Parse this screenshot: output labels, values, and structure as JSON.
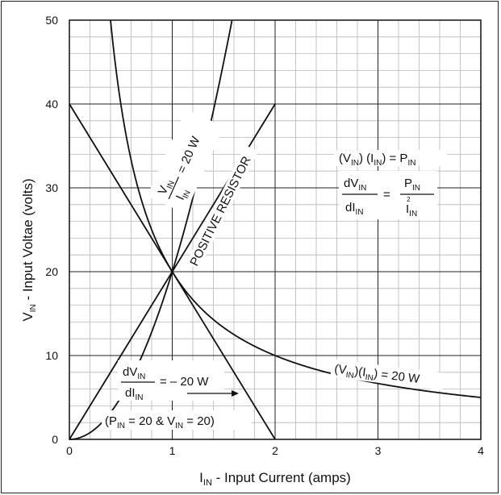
{
  "chart_data": {
    "type": "line",
    "xlabel": {
      "main": "I",
      "sub": "IN",
      "rest": " - Input Current (amps)"
    },
    "ylabel": {
      "main": "V",
      "sub": "IN",
      "rest": " - Input Voltae (volts)"
    },
    "xlim": [
      0,
      4
    ],
    "ylim": [
      0,
      50
    ],
    "x_ticks": [
      "0",
      "1",
      "2",
      "3",
      "4"
    ],
    "y_ticks": [
      "0",
      "10",
      "20",
      "30",
      "40",
      "50"
    ],
    "grid": {
      "major": true,
      "minor": true,
      "minor_x_step": 0.2,
      "minor_y_step": 2
    },
    "series": [
      {
        "kind": "hyperbola",
        "power": 20,
        "x_start": 0.4,
        "x_end": 4.0
      },
      {
        "kind": "parabola",
        "equation": "V = 20 * I^2",
        "x_start": 0.0,
        "x_end": 1.58
      },
      {
        "kind": "line",
        "x": [
          0,
          2
        ],
        "y": [
          0,
          40
        ]
      },
      {
        "kind": "line",
        "x": [
          0,
          2
        ],
        "y": [
          40,
          0
        ]
      }
    ],
    "annotations": {
      "parabola_label": {
        "num_main": "V",
        "num_sub": "IN",
        "den_main": "I",
        "den_sub": "IN",
        "rhs": "=   20 W"
      },
      "positive_resistor": "POSITIVE RESISTOR",
      "power_eq": {
        "a": "(V",
        "a_sub": "IN",
        "b": ") (I",
        "b_sub": "IN",
        "c": ") = P",
        "c_sub": "IN"
      },
      "deriv_eq": {
        "dV": "dV",
        "dV_sub": "IN",
        "dI": "dI",
        "dI_sub": "IN",
        "eq": "=",
        "P": "P",
        "P_sub": "IN",
        "I": "I",
        "I_sub": "IN",
        "I_sup": "2"
      },
      "neg_res_label": {
        "dV": "dV",
        "dV_sub": "IN",
        "dI": "dI",
        "dI_sub": "IN",
        "rhs": "=  – 20 W"
      },
      "point_label": {
        "a": "(P",
        "a_sub": "IN",
        "b": " = 20 &  V",
        "b_sub": "IN",
        "c": " = 20)"
      },
      "hyperbola_label": {
        "a": "(V",
        "a_sub": "IN",
        "b": ")(I",
        "b_sub": "IN",
        "c": ") = 20 W"
      }
    }
  }
}
